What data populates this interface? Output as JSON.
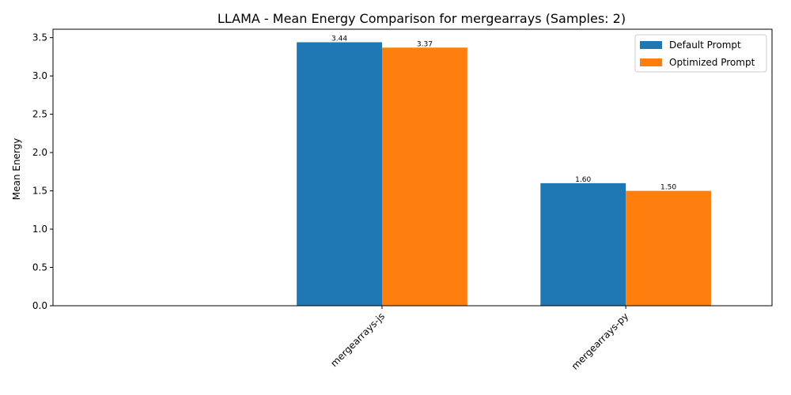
{
  "chart_data": {
    "type": "bar",
    "title": "LLAMA - Mean Energy Comparison for mergearrays (Samples: 2)",
    "xlabel": "",
    "ylabel": "Mean Energy",
    "categories": [
      "mergearrays-js",
      "mergearrays-py"
    ],
    "series": [
      {
        "name": "Default Prompt",
        "values": [
          3.44,
          1.6
        ],
        "labels": [
          "3.44",
          "1.60"
        ],
        "color": "#1f77b4"
      },
      {
        "name": "Optimized Prompt",
        "values": [
          3.37,
          1.5
        ],
        "labels": [
          "3.37",
          "1.50"
        ],
        "color": "#ff7f0e"
      }
    ],
    "ylim": [
      0,
      3.61
    ],
    "yticks": [
      0.0,
      0.5,
      1.0,
      1.5,
      2.0,
      2.5,
      3.0,
      3.5
    ],
    "ytick_labels": [
      "0.0",
      "0.5",
      "1.0",
      "1.5",
      "2.0",
      "2.5",
      "3.0",
      "3.5"
    ],
    "grid": false,
    "legend_position": "top-right"
  }
}
